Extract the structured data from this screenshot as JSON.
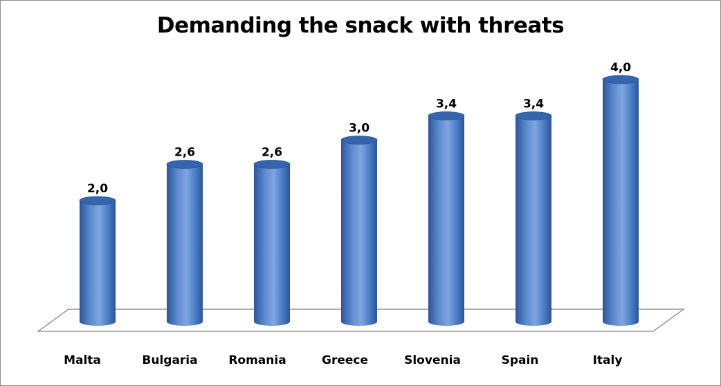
{
  "chart_data": {
    "type": "bar",
    "style": "3d-cylinder",
    "title": "Demanding the snack with threats",
    "categories": [
      "Malta",
      "Bulgaria",
      "Romania",
      "Greece",
      "Slovenia",
      "Spain",
      "Italy"
    ],
    "values": [
      2.0,
      2.6,
      2.6,
      3.0,
      3.4,
      3.4,
      4.0
    ],
    "data_labels": [
      "2,0",
      "2,6",
      "2,6",
      "3,0",
      "3,4",
      "3,4",
      "4,0"
    ],
    "xlabel": "",
    "ylabel": "",
    "ylim": [
      0,
      4
    ],
    "grid": false,
    "legend": "none",
    "colors": {
      "bar_light": "#7ea6e0",
      "bar_mid": "#4a7bc4",
      "bar_dark": "#2c5596",
      "bar_top": "#3565ad",
      "floor_stroke": "#7f7f7f"
    }
  }
}
